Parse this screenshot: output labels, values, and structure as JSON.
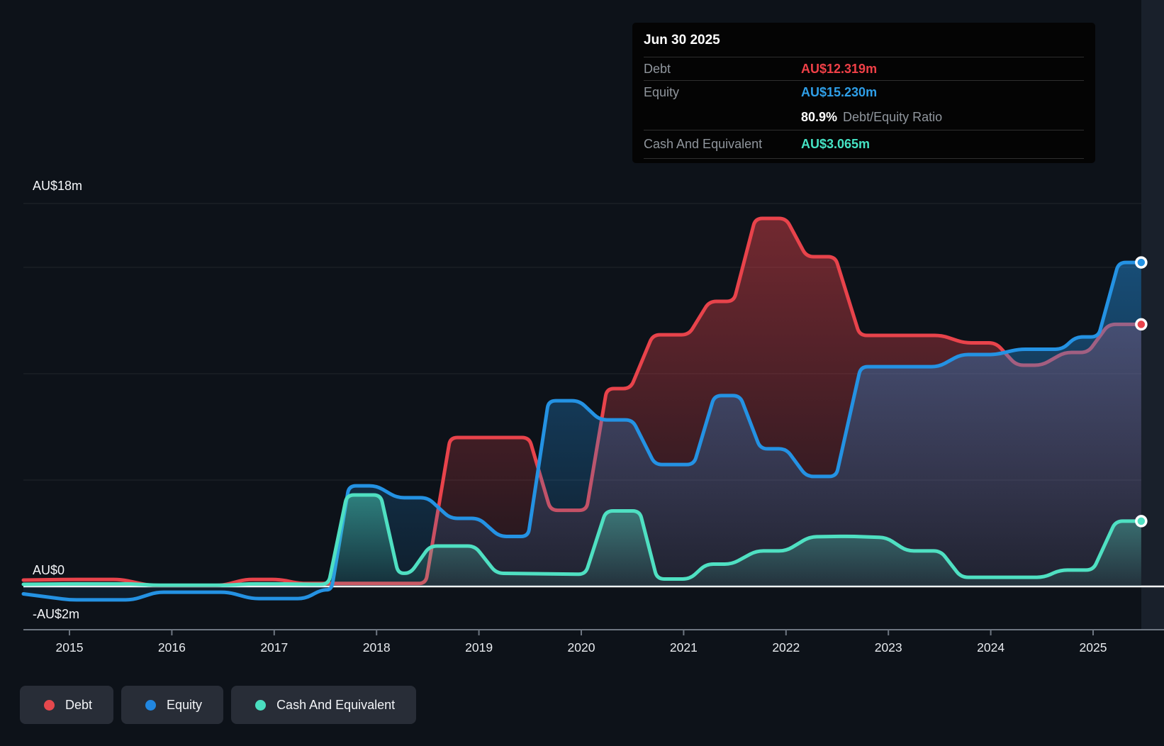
{
  "tooltip": {
    "title": "Jun 30 2025",
    "debt_label": "Debt",
    "debt_value": "AU$12.319m",
    "equity_label": "Equity",
    "equity_value": "AU$15.230m",
    "ratio_value": "80.9%",
    "ratio_label": "Debt/Equity Ratio",
    "cash_label": "Cash And Equivalent",
    "cash_value": "AU$3.065m",
    "debt_color": "#ef4047",
    "equity_color": "#2f9fe8",
    "cash_color": "#45e3c4"
  },
  "legend": [
    {
      "label": "Debt",
      "color": "#e5484d"
    },
    {
      "label": "Equity",
      "color": "#2187e0"
    },
    {
      "label": "Cash And Equivalent",
      "color": "#4adec0"
    }
  ],
  "y_axis": {
    "top_label": "AU$18m",
    "zero_label": "AU$0",
    "bottom_label": "-AU$2m"
  },
  "x_axis": {
    "years": [
      "2015",
      "2016",
      "2017",
      "2018",
      "2019",
      "2020",
      "2021",
      "2022",
      "2023",
      "2024",
      "2025"
    ]
  },
  "chart_data": {
    "type": "area",
    "x_domain": [
      2014.55,
      2025.47
    ],
    "y_domain_m": [
      -2,
      18
    ],
    "y_gridlines_m": [
      18,
      15,
      10,
      5
    ],
    "grid": "on",
    "legend_position": "bottom",
    "series": [
      {
        "name": "Debt",
        "color": "#e8434b",
        "points": [
          [
            2014.55,
            0.3
          ],
          [
            2015,
            0.33
          ],
          [
            2015.5,
            0.33
          ],
          [
            2015.78,
            0.05
          ],
          [
            2016.5,
            0.05
          ],
          [
            2016.72,
            0.33
          ],
          [
            2017.05,
            0.33
          ],
          [
            2017.25,
            0.14
          ],
          [
            2018.48,
            0.14
          ],
          [
            2018.72,
            7
          ],
          [
            2019.49,
            7
          ],
          [
            2019.7,
            3.58
          ],
          [
            2020.05,
            3.58
          ],
          [
            2020.25,
            9.3
          ],
          [
            2020.48,
            9.3
          ],
          [
            2020.7,
            11.83
          ],
          [
            2021.05,
            11.83
          ],
          [
            2021.25,
            13.4
          ],
          [
            2021.49,
            13.4
          ],
          [
            2021.7,
            17.3
          ],
          [
            2022,
            17.3
          ],
          [
            2022.2,
            15.5
          ],
          [
            2022.48,
            15.5
          ],
          [
            2022.72,
            11.8
          ],
          [
            2023.52,
            11.8
          ],
          [
            2023.74,
            11.45
          ],
          [
            2024.05,
            11.45
          ],
          [
            2024.25,
            10.4
          ],
          [
            2024.5,
            10.4
          ],
          [
            2024.72,
            11
          ],
          [
            2024.95,
            11
          ],
          [
            2025.15,
            12.32
          ],
          [
            2025.47,
            12.32
          ]
        ]
      },
      {
        "name": "Equity",
        "color": "#2492e3",
        "points": [
          [
            2014.55,
            -0.35
          ],
          [
            2015,
            -0.63
          ],
          [
            2015.62,
            -0.63
          ],
          [
            2015.85,
            -0.27
          ],
          [
            2016.55,
            -0.27
          ],
          [
            2016.78,
            -0.57
          ],
          [
            2017.3,
            -0.57
          ],
          [
            2017.46,
            -0.17
          ],
          [
            2017.56,
            -0.15
          ],
          [
            2017.73,
            4.73
          ],
          [
            2018,
            4.73
          ],
          [
            2018.2,
            4.17
          ],
          [
            2018.5,
            4.17
          ],
          [
            2018.72,
            3.2
          ],
          [
            2019,
            3.2
          ],
          [
            2019.2,
            2.35
          ],
          [
            2019.48,
            2.35
          ],
          [
            2019.68,
            8.73
          ],
          [
            2019.98,
            8.73
          ],
          [
            2020.18,
            7.83
          ],
          [
            2020.5,
            7.83
          ],
          [
            2020.72,
            5.73
          ],
          [
            2021.1,
            5.73
          ],
          [
            2021.3,
            8.97
          ],
          [
            2021.55,
            8.97
          ],
          [
            2021.75,
            6.47
          ],
          [
            2022,
            6.47
          ],
          [
            2022.2,
            5.17
          ],
          [
            2022.49,
            5.17
          ],
          [
            2022.73,
            10.33
          ],
          [
            2023.49,
            10.33
          ],
          [
            2023.71,
            10.9
          ],
          [
            2024.05,
            10.9
          ],
          [
            2024.27,
            11.15
          ],
          [
            2024.7,
            11.15
          ],
          [
            2024.83,
            11.73
          ],
          [
            2025.05,
            11.73
          ],
          [
            2025.25,
            15.23
          ],
          [
            2025.47,
            15.23
          ]
        ]
      },
      {
        "name": "Cash And Equivalent",
        "color": "#4fe0c2",
        "points": [
          [
            2014.55,
            0.1
          ],
          [
            2015,
            0.12
          ],
          [
            2015.6,
            0.12
          ],
          [
            2015.82,
            0.06
          ],
          [
            2016.55,
            0.06
          ],
          [
            2016.75,
            0.12
          ],
          [
            2017.1,
            0.12
          ],
          [
            2017.3,
            0.1
          ],
          [
            2017.53,
            0.1
          ],
          [
            2017.71,
            4.3
          ],
          [
            2018.04,
            4.3
          ],
          [
            2018.21,
            0.62
          ],
          [
            2018.33,
            0.62
          ],
          [
            2018.52,
            1.9
          ],
          [
            2018.96,
            1.9
          ],
          [
            2019.17,
            0.62
          ],
          [
            2020.04,
            0.57
          ],
          [
            2020.24,
            3.55
          ],
          [
            2020.57,
            3.55
          ],
          [
            2020.74,
            0.35
          ],
          [
            2021.06,
            0.35
          ],
          [
            2021.22,
            1.05
          ],
          [
            2021.47,
            1.05
          ],
          [
            2021.71,
            1.67
          ],
          [
            2022,
            1.67
          ],
          [
            2022.23,
            2.33
          ],
          [
            2022.6,
            2.36
          ],
          [
            2022.98,
            2.3
          ],
          [
            2023.18,
            1.67
          ],
          [
            2023.51,
            1.67
          ],
          [
            2023.71,
            0.43
          ],
          [
            2024.52,
            0.43
          ],
          [
            2024.68,
            0.77
          ],
          [
            2025,
            0.77
          ],
          [
            2025.22,
            3.07
          ],
          [
            2025.47,
            3.07
          ]
        ]
      }
    ]
  },
  "colors": {
    "background": "#0d1219",
    "right_band": "#19202b",
    "gridline": "rgba(255,255,255,0.07)",
    "zero_line": "#ffffff",
    "axis_line": "#6e7681",
    "axis_text": "#e7eaee",
    "y_label_text": "#f5f7fa"
  }
}
